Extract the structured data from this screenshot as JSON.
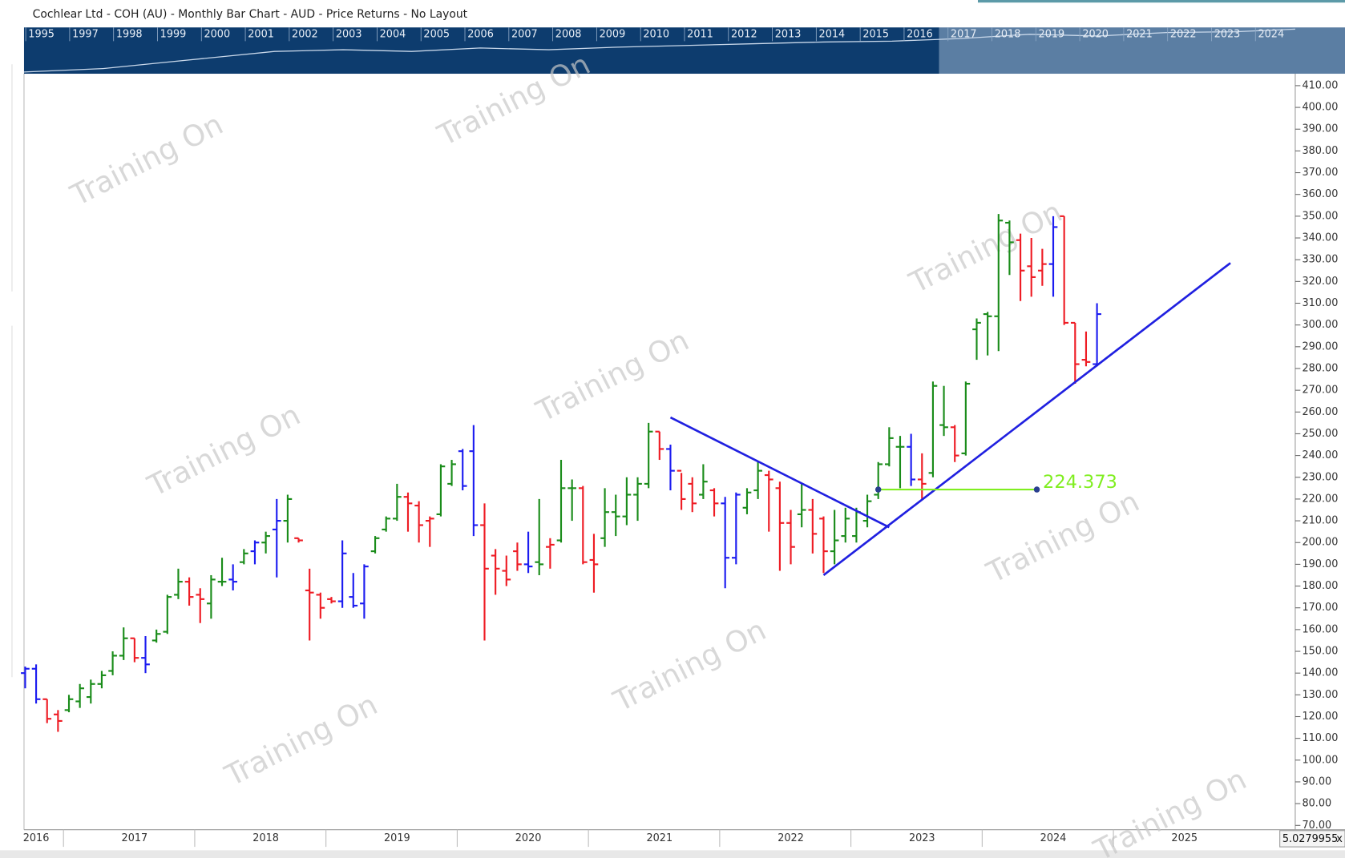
{
  "title": "Cochlear Ltd - COH (AU) - Monthly Bar Chart - AUD - Price Returns - No Layout",
  "navigator_years": [
    "1995",
    "1997",
    "1998",
    "1999",
    "2000",
    "2001",
    "2002",
    "2003",
    "2004",
    "2005",
    "2006",
    "2007",
    "2008",
    "2009",
    "2010",
    "2011",
    "2012",
    "2013",
    "2014",
    "2015",
    "2016",
    "2017",
    "2018",
    "2019",
    "2020",
    "2021",
    "2022",
    "2023",
    "2024"
  ],
  "watermark": "Training On",
  "scale_box": "5.0279955",
  "close_button": "x",
  "chart_data": {
    "type": "ohlc",
    "categories": [
      null,
      "2016",
      null,
      null,
      null,
      null,
      null,
      null,
      null,
      null,
      "2017",
      null,
      null,
      null,
      null,
      null,
      null,
      null,
      null,
      null,
      null,
      null,
      "2018",
      null,
      null,
      null,
      null,
      null,
      null,
      null,
      null,
      null,
      null,
      null,
      "2019",
      null,
      null,
      null,
      null,
      null,
      null,
      null,
      null,
      null,
      null,
      null,
      "2020",
      null,
      null,
      null,
      null,
      null,
      null,
      null,
      null,
      null,
      null,
      null,
      "2021",
      null,
      null,
      null,
      null,
      null,
      null,
      null,
      null,
      null,
      null,
      null,
      "2022",
      null,
      null,
      null,
      null,
      null,
      null,
      null,
      null,
      null,
      null,
      null,
      "2023",
      null,
      null,
      null,
      null,
      null,
      null,
      null,
      null,
      null,
      null,
      null,
      "2024",
      null,
      null,
      null,
      null,
      null,
      null,
      null,
      null,
      null,
      null,
      null,
      "2025",
      null,
      null,
      null,
      null,
      null,
      null,
      null,
      null
    ],
    "open": [
      140,
      142,
      128,
      121,
      123,
      127,
      129,
      135,
      141,
      148,
      156,
      147,
      155,
      159,
      176,
      182,
      176,
      172,
      182,
      183,
      191,
      196,
      200,
      206,
      210,
      202,
      178,
      176,
      174,
      173,
      175,
      172,
      196,
      206,
      211,
      221,
      217,
      210,
      213,
      227,
      242,
      242,
      208,
      194,
      187,
      196,
      190,
      191,
      198,
      201,
      225,
      225,
      192,
      202,
      214,
      212,
      222,
      227,
      251,
      243,
      233,
      227,
      222,
      224,
      218,
      193,
      216,
      224,
      231,
      225,
      209,
      213,
      215,
      211,
      196,
      203,
      203,
      210,
      222,
      236,
      244,
      244,
      229,
      232,
      254,
      253,
      241,
      298,
      305,
      304,
      347,
      339,
      327,
      325,
      328,
      350,
      301,
      284,
      282,
      null,
      null,
      null,
      null,
      null,
      null,
      null,
      null,
      null,
      null,
      null,
      null,
      null,
      null,
      null,
      null
    ],
    "high": [
      143,
      144,
      128,
      123,
      130,
      135,
      137,
      141,
      150,
      161,
      156,
      157,
      160,
      176,
      188,
      184,
      179,
      185,
      193,
      190,
      197,
      201,
      205,
      220,
      222,
      202,
      188,
      177,
      175,
      201,
      186,
      190,
      203,
      212,
      227,
      223,
      219,
      212,
      236,
      238,
      243,
      254,
      218,
      197,
      194,
      200,
      205,
      220,
      202,
      238,
      229,
      226,
      204,
      225,
      222,
      230,
      230,
      255,
      251,
      245,
      232,
      230,
      236,
      225,
      221,
      223,
      225,
      237,
      233,
      228,
      215,
      227,
      220,
      212,
      215,
      216,
      216,
      222,
      237,
      253,
      249,
      250,
      241,
      274,
      272,
      254,
      274,
      303,
      306,
      351,
      348,
      342,
      340,
      335,
      350,
      350,
      301,
      297,
      310,
      null,
      null,
      null,
      null,
      null,
      null,
      null,
      null,
      null,
      null,
      null,
      null,
      null,
      null,
      null,
      null
    ],
    "low": [
      133,
      126,
      117,
      113,
      122,
      124,
      126,
      133,
      139,
      146,
      145,
      140,
      154,
      158,
      174,
      171,
      163,
      165,
      180,
      178,
      190,
      190,
      195,
      184,
      200,
      200,
      155,
      165,
      172,
      170,
      170,
      165,
      195,
      205,
      210,
      205,
      200,
      198,
      212,
      226,
      224,
      203,
      155,
      176,
      180,
      187,
      186,
      185,
      188,
      200,
      210,
      190,
      177,
      198,
      203,
      208,
      210,
      225,
      238,
      224,
      215,
      214,
      220,
      212,
      179,
      190,
      213,
      220,
      205,
      187,
      190,
      207,
      195,
      186,
      190,
      200,
      200,
      207,
      220,
      235,
      225,
      226,
      220,
      230,
      249,
      237,
      240,
      284,
      286,
      288,
      323,
      311,
      313,
      318,
      313,
      300,
      273,
      281,
      281,
      null,
      null,
      null,
      null,
      null,
      null,
      null,
      null,
      null,
      null,
      null,
      null,
      null,
      null,
      null,
      null
    ],
    "close": [
      142,
      128,
      119,
      118,
      128,
      133,
      135,
      139,
      148,
      156,
      147,
      144,
      158,
      175,
      182,
      175,
      174,
      183,
      182,
      182,
      195,
      200,
      203,
      210,
      220,
      201,
      177,
      170,
      173,
      195,
      171,
      189,
      202,
      211,
      221,
      218,
      208,
      211,
      235,
      236,
      226,
      208,
      188,
      188,
      183,
      190,
      189,
      190,
      199,
      225,
      225,
      191,
      190,
      214,
      212,
      222,
      227,
      251,
      243,
      233,
      220,
      218,
      228,
      218,
      193,
      222,
      223,
      233,
      229,
      209,
      198,
      215,
      204,
      196,
      201,
      211,
      214,
      219,
      236,
      248,
      244,
      229,
      227,
      272,
      253,
      240,
      273,
      301,
      304,
      348,
      338,
      325,
      322,
      328,
      345,
      301,
      282,
      283,
      305,
      null,
      null,
      null,
      null,
      null,
      null,
      null,
      null,
      null,
      null,
      null,
      null,
      null,
      null,
      null,
      null
    ],
    "colors": [
      "#1c1cf0",
      "#1c1cf0",
      "#ee1c24",
      "#ee1c24",
      "#1a8c1a",
      "#1a8c1a",
      "#1a8c1a",
      "#1a8c1a",
      "#1a8c1a",
      "#1a8c1a",
      "#ee1c24",
      "#1c1cf0",
      "#1a8c1a",
      "#1a8c1a",
      "#1a8c1a",
      "#ee1c24",
      "#ee1c24",
      "#1a8c1a",
      "#1a8c1a",
      "#1c1cf0",
      "#1a8c1a",
      "#1c1cf0",
      "#1a8c1a",
      "#1c1cf0",
      "#1a8c1a",
      "#ee1c24",
      "#ee1c24",
      "#ee1c24",
      "#ee1c24",
      "#1c1cf0",
      "#1c1cf0",
      "#1c1cf0",
      "#1a8c1a",
      "#1a8c1a",
      "#1a8c1a",
      "#ee1c24",
      "#ee1c24",
      "#ee1c24",
      "#1a8c1a",
      "#1a8c1a",
      "#1c1cf0",
      "#1c1cf0",
      "#ee1c24",
      "#ee1c24",
      "#ee1c24",
      "#ee1c24",
      "#1c1cf0",
      "#1a8c1a",
      "#ee1c24",
      "#1a8c1a",
      "#1a8c1a",
      "#ee1c24",
      "#ee1c24",
      "#1a8c1a",
      "#1a8c1a",
      "#1a8c1a",
      "#1a8c1a",
      "#1a8c1a",
      "#ee1c24",
      "#1c1cf0",
      "#ee1c24",
      "#ee1c24",
      "#1a8c1a",
      "#ee1c24",
      "#1c1cf0",
      "#1c1cf0",
      "#1a8c1a",
      "#1a8c1a",
      "#ee1c24",
      "#ee1c24",
      "#ee1c24",
      "#1a8c1a",
      "#ee1c24",
      "#ee1c24",
      "#1a8c1a",
      "#1a8c1a",
      "#1a8c1a",
      "#1a8c1a",
      "#1a8c1a",
      "#1a8c1a",
      "#1a8c1a",
      "#1c1cf0",
      "#ee1c24",
      "#1a8c1a",
      "#1a8c1a",
      "#ee1c24",
      "#1a8c1a",
      "#1a8c1a",
      "#1a8c1a",
      "#1a8c1a",
      "#1a8c1a",
      "#ee1c24",
      "#ee1c24",
      "#ee1c24",
      "#1c1cf0",
      "#ee1c24",
      "#ee1c24",
      "#ee1c24",
      "#1c1cf0",
      null,
      null,
      null,
      null,
      null,
      null,
      null,
      null,
      null,
      null,
      null,
      null,
      null,
      null,
      null,
      null
    ],
    "ylim": [
      68.8,
      414.7
    ],
    "yticks": [
      {
        "value": 410,
        "label": "410.00"
      },
      {
        "value": 400,
        "label": "400.00"
      },
      {
        "value": 390,
        "label": "390.00"
      },
      {
        "value": 380,
        "label": "380.00"
      },
      {
        "value": 370,
        "label": "370.00"
      },
      {
        "value": 360,
        "label": "360.00"
      },
      {
        "value": 350,
        "label": "350.00"
      },
      {
        "value": 340,
        "label": "340.00"
      },
      {
        "value": 330,
        "label": "330.00"
      },
      {
        "value": 320,
        "label": "320.00"
      },
      {
        "value": 310,
        "label": "310.00"
      },
      {
        "value": 300,
        "label": "300.00"
      },
      {
        "value": 290,
        "label": "290.00"
      },
      {
        "value": 280,
        "label": "280.00"
      },
      {
        "value": 270,
        "label": "270.00"
      },
      {
        "value": 260,
        "label": "260.00"
      },
      {
        "value": 250,
        "label": "250.00"
      },
      {
        "value": 240,
        "label": "240.00"
      },
      {
        "value": 230,
        "label": "230.00"
      },
      {
        "value": 220,
        "label": "220.00"
      },
      {
        "value": 210,
        "label": "210.00"
      },
      {
        "value": 200,
        "label": "200.00"
      },
      {
        "value": 190,
        "label": "190.00"
      },
      {
        "value": 180,
        "label": "180.00"
      },
      {
        "value": 170,
        "label": "170.00"
      },
      {
        "value": 160,
        "label": "160.00"
      },
      {
        "value": 150,
        "label": "150.00"
      },
      {
        "value": 140,
        "label": "140.00"
      },
      {
        "value": 130,
        "label": "130.00"
      },
      {
        "value": 120,
        "label": "120.00"
      },
      {
        "value": 110,
        "label": "110.00"
      },
      {
        "value": 100,
        "label": "100.00"
      },
      {
        "value": 90,
        "label": "90.00"
      },
      {
        "value": 80,
        "label": "80.00"
      },
      {
        "value": 70,
        "label": "70.00"
      }
    ],
    "trendlines": [
      {
        "from": [
          59,
          257.5
        ],
        "to": [
          79,
          207
        ],
        "color": "#2020e0"
      },
      {
        "from": [
          73,
          185
        ],
        "to": [
          110.2,
          328.5
        ],
        "color": "#2020e0"
      }
    ],
    "level": {
      "value": 224.373,
      "from": 78,
      "to": 92.5,
      "color": "#80ee20"
    }
  }
}
